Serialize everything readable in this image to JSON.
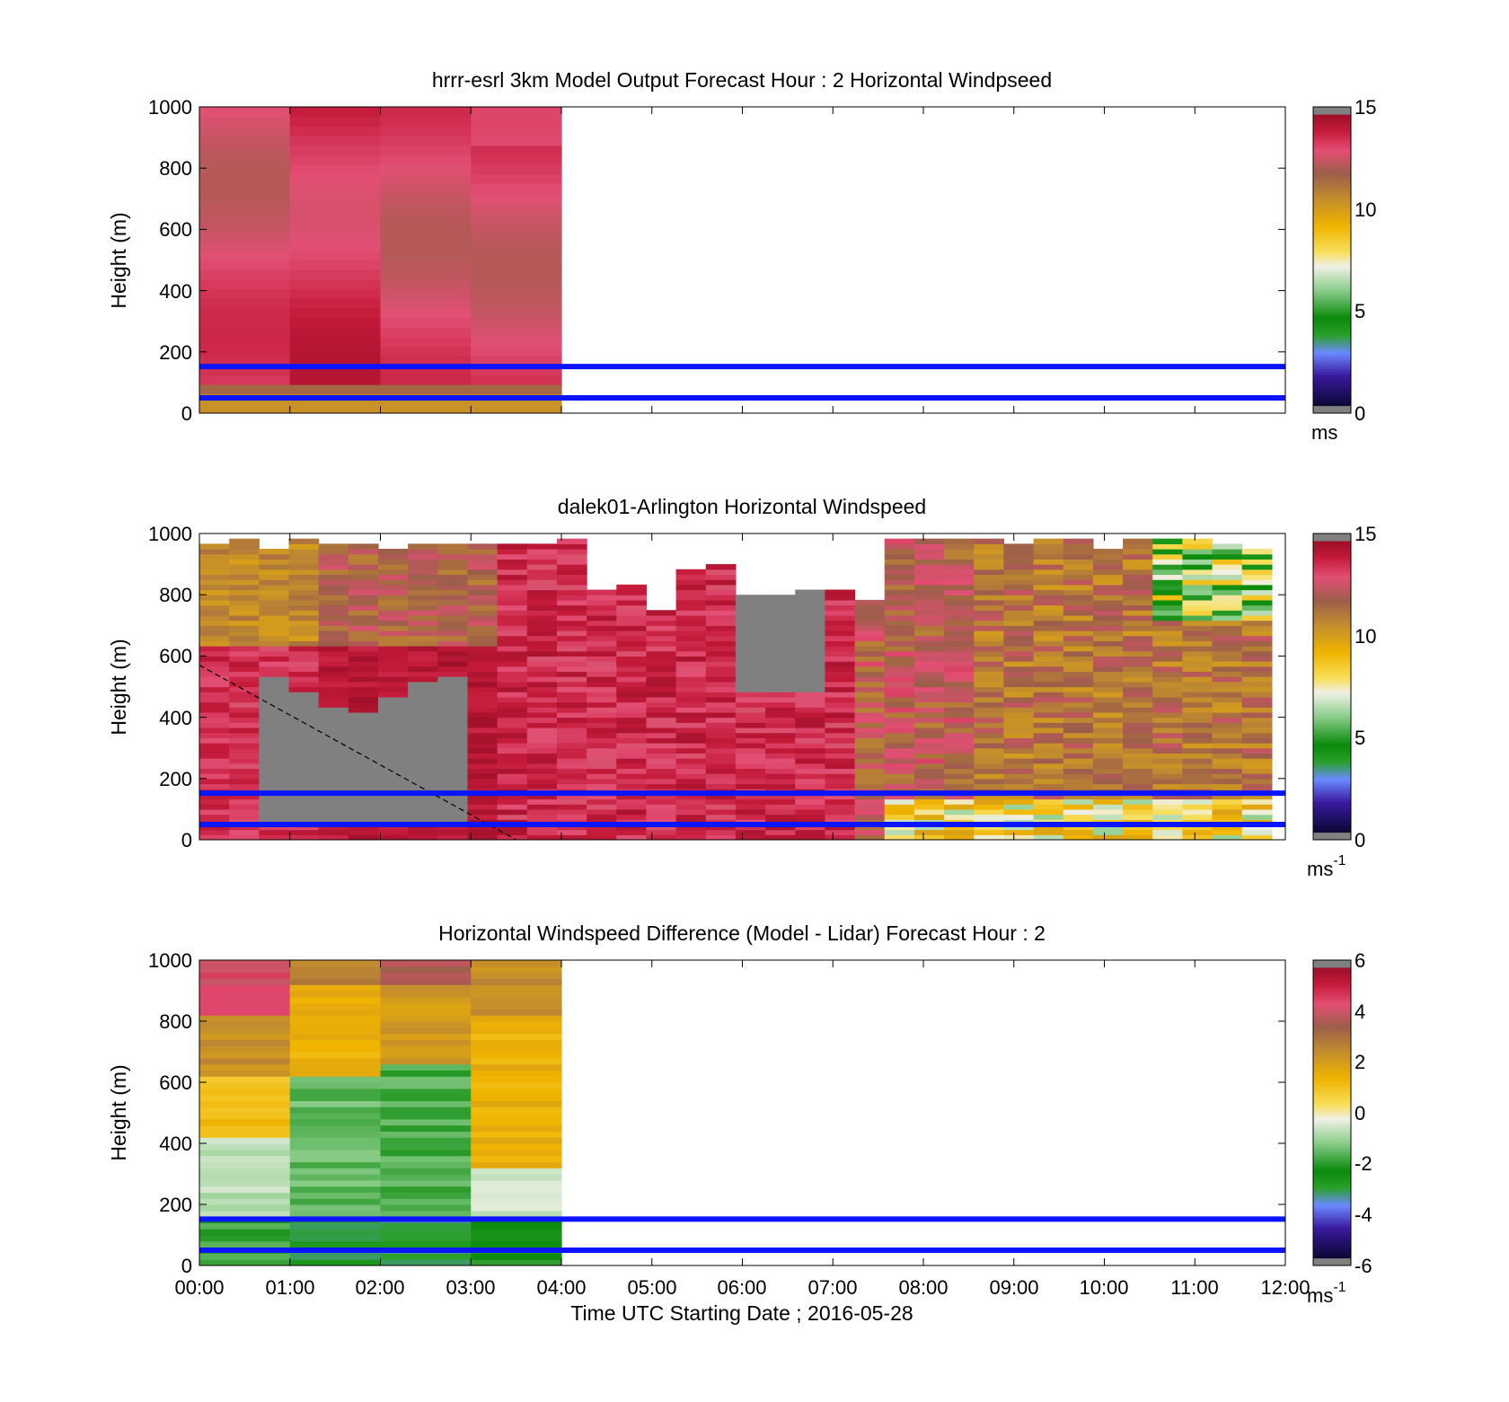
{
  "chart_data": [
    {
      "type": "heatmap",
      "title": "hrrr-esrl 3km Model Output   Forecast Hour : 2 Horizontal Windpseed",
      "ylabel": "Height (m)",
      "xlabel": "",
      "ylim": [
        0,
        1000
      ],
      "yticks": [
        "0",
        "200",
        "400",
        "600",
        "800",
        "1000"
      ],
      "xlim_hours": [
        0,
        12
      ],
      "colorbar": {
        "min": 0,
        "max": 15,
        "ticks": [
          "0",
          "5",
          "10",
          "15"
        ],
        "unit": "ms",
        "unit_sup": ""
      },
      "reference_lines_m": [
        50,
        152
      ],
      "data_extent_hours": [
        0,
        4
      ],
      "pattern": "model"
    },
    {
      "type": "heatmap",
      "title": "dalek01-Arlington  Horizontal Windspeed",
      "ylabel": "Height (m)",
      "xlabel": "",
      "ylim": [
        0,
        1000
      ],
      "yticks": [
        "0",
        "200",
        "400",
        "600",
        "800",
        "1000"
      ],
      "xlim_hours": [
        0,
        12
      ],
      "colorbar": {
        "min": 0,
        "max": 15,
        "ticks": [
          "0",
          "5",
          "10",
          "15"
        ],
        "unit": "ms",
        "unit_sup": "-1"
      },
      "reference_lines_m": [
        50,
        152
      ],
      "data_extent_hours": [
        0,
        11.85
      ],
      "pattern": "lidar"
    },
    {
      "type": "heatmap",
      "title": "Horizontal Windspeed Difference (Model - Lidar) Forecast Hour : 2",
      "ylabel": "Height (m)",
      "xlabel": "Time UTC  Starting Date ; 2016-05-28",
      "ylim": [
        0,
        1000
      ],
      "yticks": [
        "0",
        "200",
        "400",
        "600",
        "800",
        "1000"
      ],
      "xlim_hours": [
        0,
        12
      ],
      "xticks": [
        "00:00",
        "01:00",
        "02:00",
        "03:00",
        "04:00",
        "05:00",
        "06:00",
        "07:00",
        "08:00",
        "09:00",
        "10:00",
        "11:00",
        "12:00"
      ],
      "colorbar": {
        "min": -6,
        "max": 6,
        "ticks": [
          "-6",
          "-4",
          "-2",
          "0",
          "2",
          "4",
          "6"
        ],
        "unit": "ms",
        "unit_sup": "-1"
      },
      "reference_lines_m": [
        50,
        152
      ],
      "data_extent_hours": [
        0,
        4
      ],
      "pattern": "diff"
    }
  ]
}
